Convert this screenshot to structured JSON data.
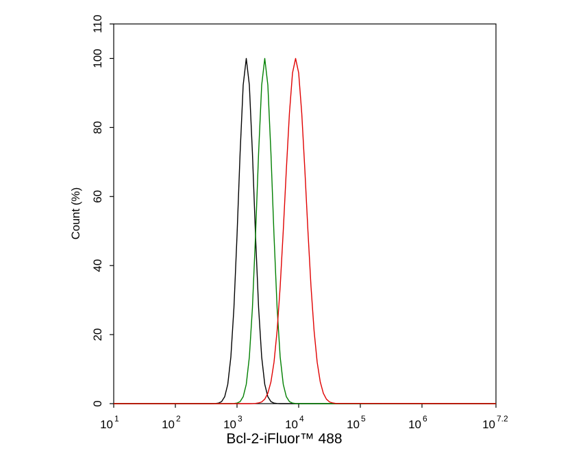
{
  "chart_data": {
    "type": "line",
    "xlabel": "Bcl-2-iFluor™ 488",
    "ylabel": "Count  (%)",
    "x_scale": "log10",
    "x_tick_base": "10",
    "xlim": [
      1,
      7.2
    ],
    "xticks": [
      1,
      2,
      3,
      4,
      5,
      6,
      7.2
    ],
    "ylim": [
      0,
      110
    ],
    "yticks": [
      0,
      20,
      40,
      60,
      80,
      100,
      110
    ],
    "x": [
      1,
      2.6,
      2.65,
      2.7,
      2.75,
      2.8,
      2.85,
      2.9,
      2.95,
      3.0,
      3.05,
      3.1,
      3.15,
      3.2,
      3.25,
      3.3,
      3.35,
      3.4,
      3.45,
      3.5,
      3.55,
      3.6,
      3.65,
      3.7,
      3.75,
      3.8,
      3.85,
      3.9,
      3.95,
      4.0,
      4.05,
      4.1,
      4.15,
      4.2,
      4.25,
      4.3,
      4.35,
      4.4,
      4.45,
      4.5,
      4.55,
      4.6,
      7.2
    ],
    "series": [
      {
        "color": "#000000",
        "values": [
          0,
          0,
          0.03,
          0.15,
          0.6,
          2.0,
          5.6,
          13.5,
          27.8,
          48.7,
          72.6,
          92.3,
          100,
          92.3,
          72.6,
          48.7,
          27.8,
          13.5,
          5.6,
          2.0,
          0.6,
          0.15,
          0.03,
          0,
          0,
          0,
          0,
          0,
          0,
          0,
          0,
          0,
          0,
          0,
          0,
          0,
          0,
          0,
          0,
          0,
          0,
          0,
          0
        ]
      },
      {
        "color": "#007f00",
        "values": [
          0,
          0,
          0,
          0,
          0,
          0,
          0,
          0,
          0.03,
          0.15,
          0.6,
          2.0,
          5.6,
          13.5,
          27.8,
          48.7,
          72.6,
          92.3,
          100,
          92.3,
          72.6,
          48.7,
          27.8,
          13.5,
          5.6,
          2.0,
          0.6,
          0.15,
          0.03,
          0,
          0,
          0,
          0,
          0,
          0,
          0,
          0,
          0,
          0,
          0,
          0,
          0,
          0
        ]
      },
      {
        "color": "#e00000",
        "values": [
          0,
          0,
          0,
          0,
          0,
          0,
          0,
          0,
          0,
          0,
          0,
          0,
          0,
          0,
          0.02,
          0.07,
          0.2,
          0.5,
          1.3,
          3.0,
          6.3,
          12.0,
          21.1,
          33.9,
          50.1,
          67.8,
          84.1,
          95.8,
          100,
          95.8,
          84.1,
          67.8,
          50.1,
          33.9,
          21.1,
          12.0,
          6.3,
          3.0,
          1.3,
          0.5,
          0.2,
          0.07,
          0
        ]
      }
    ]
  }
}
